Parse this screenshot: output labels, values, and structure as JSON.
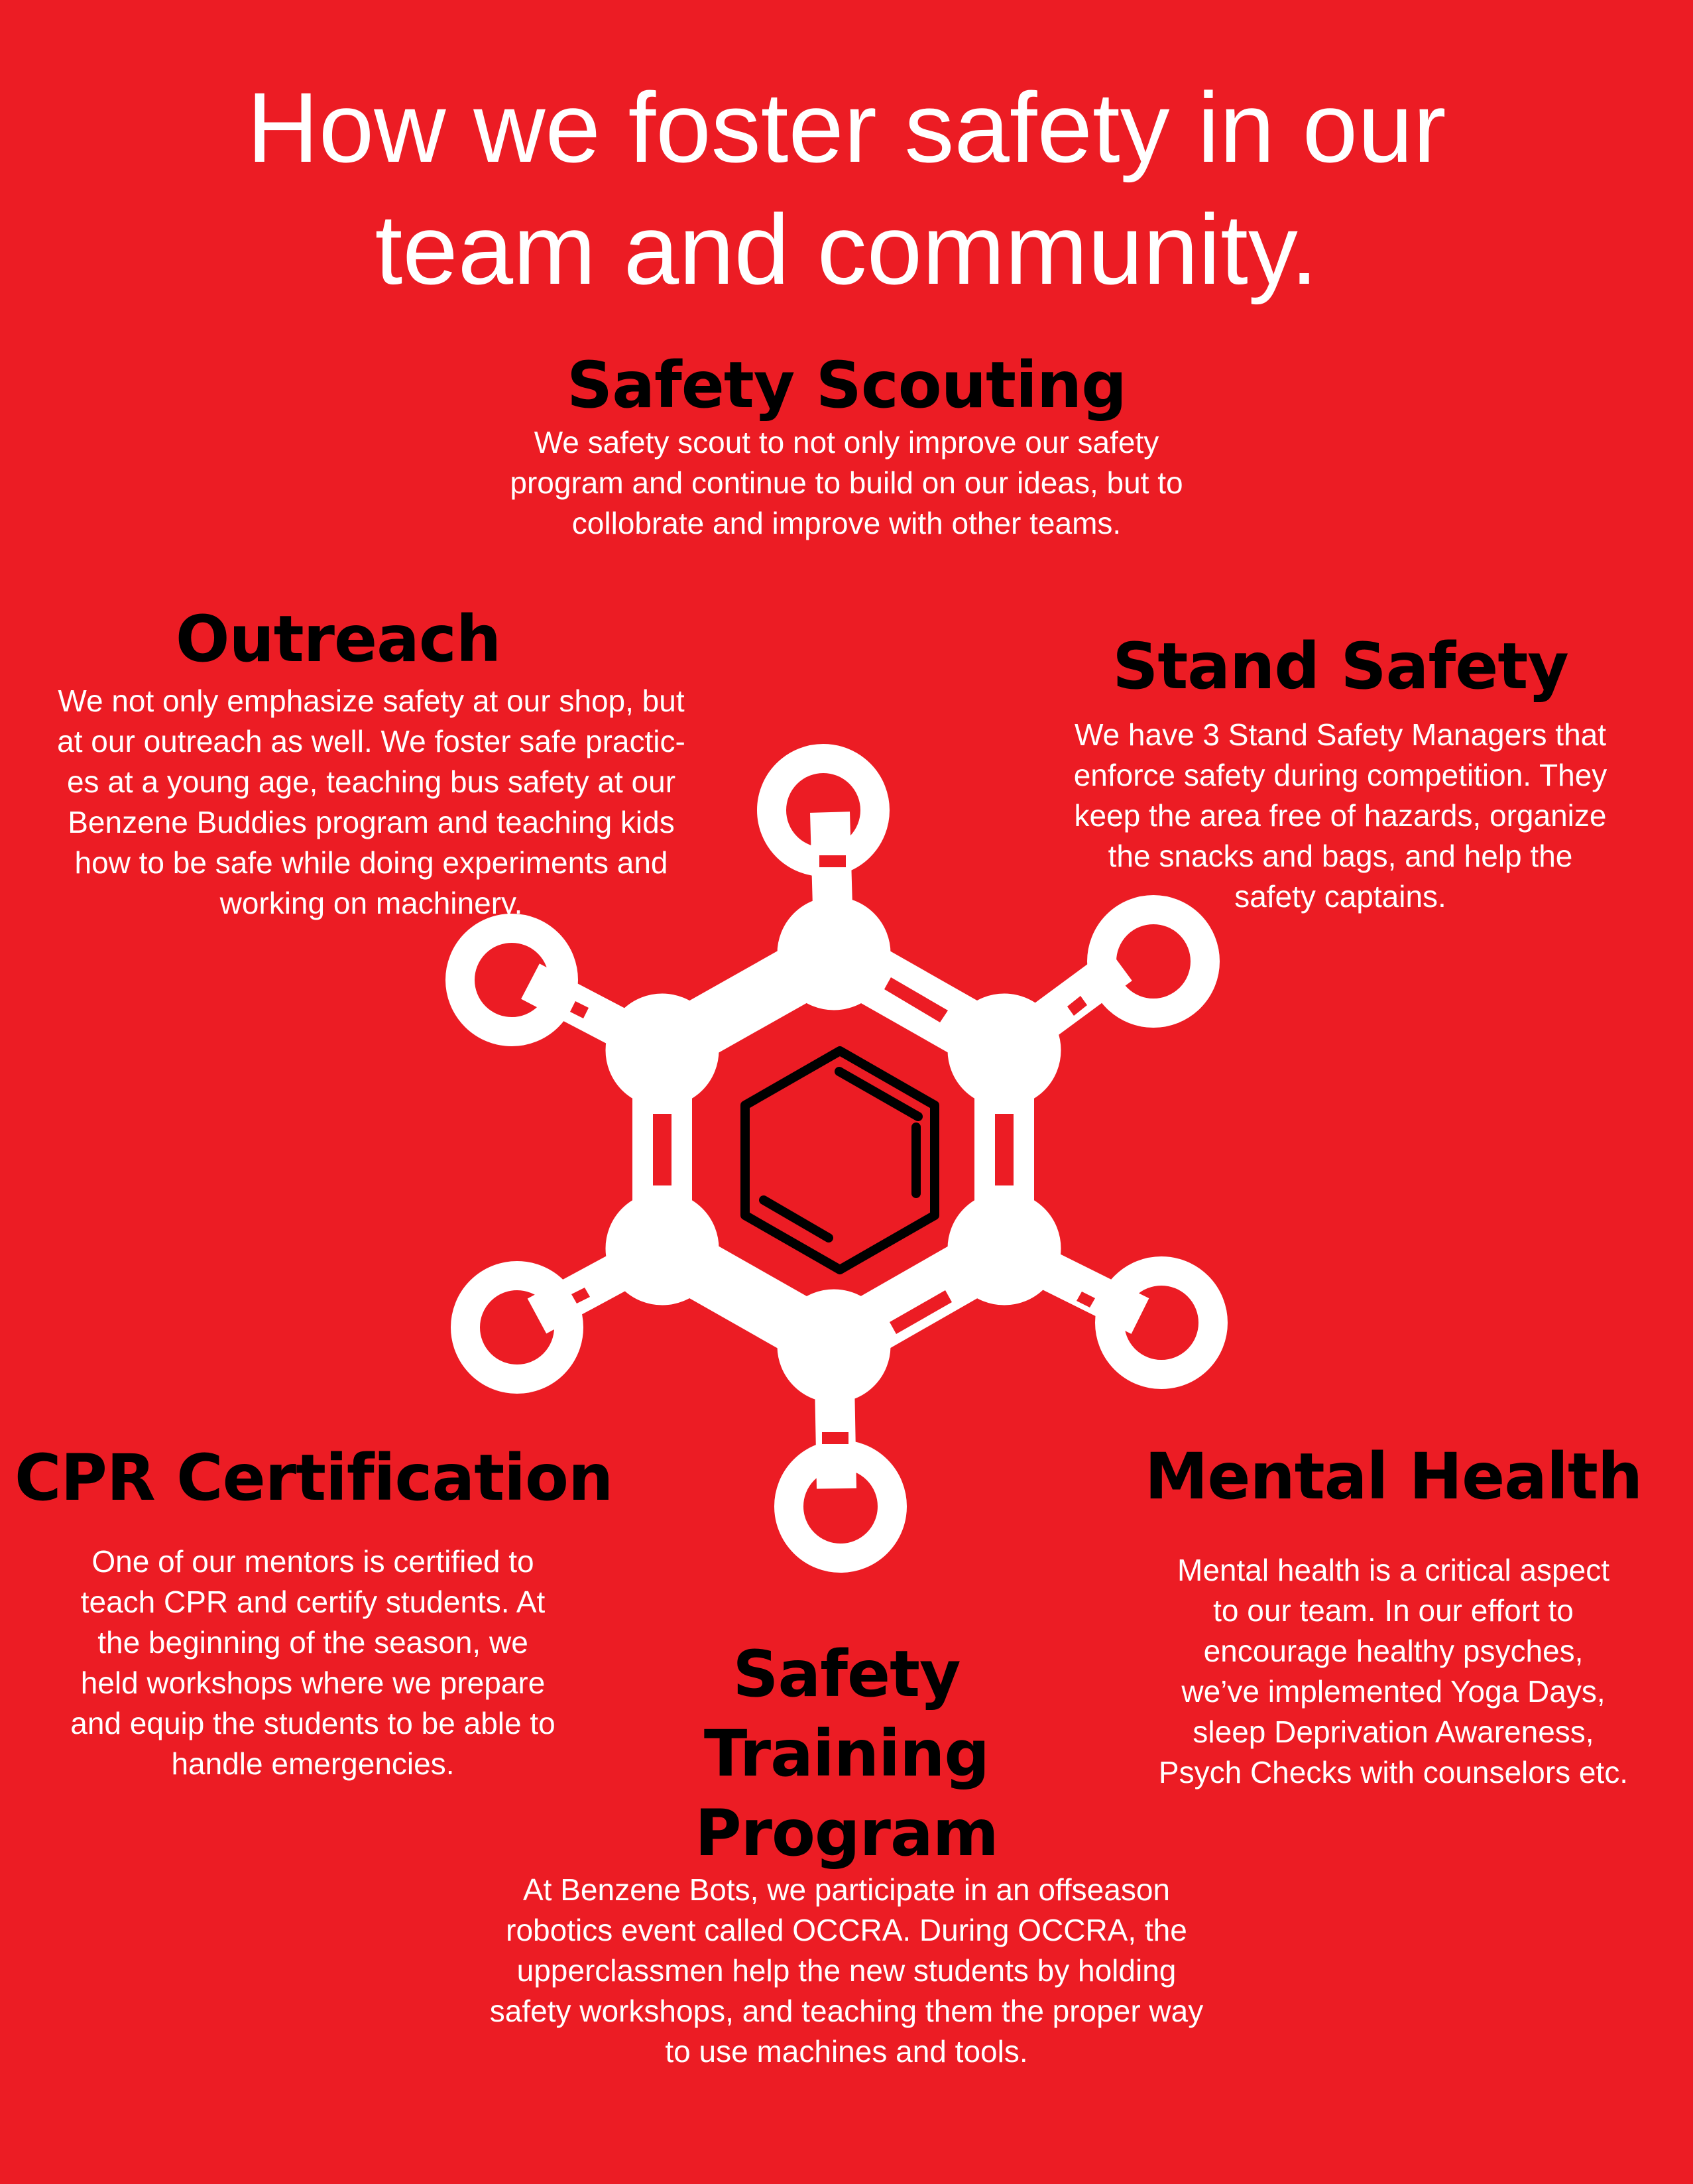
{
  "title": {
    "line1": "How we foster safety in our",
    "line2": "team and community."
  },
  "sections": {
    "safety_scouting": {
      "heading": "Safety Scouting",
      "lines": [
        "We safety scout to not only improve our safety",
        "program and continue to build on our ideas, but to",
        "collobrate and improve with other teams."
      ]
    },
    "outreach": {
      "heading": "Outreach",
      "lines": [
        "We not only emphasize safety at our shop, but",
        "at our outreach as well. We foster safe practic-",
        "es at a young age, teaching bus safety at our",
        "Benzene Buddies program and teaching kids",
        "how to be safe while doing experiments and",
        "working on machinery."
      ]
    },
    "stand_safety": {
      "heading": "Stand Safety",
      "lines": [
        "We have 3 Stand Safety Managers that",
        "enforce safety during competition. They",
        "keep the area free of hazards, organize",
        "the snacks and bags, and help the",
        "safety captains."
      ]
    },
    "cpr_certification": {
      "heading": "CPR Certification",
      "lines": [
        "One of our mentors is certified to",
        "teach CPR and certify students. At",
        "the beginning of the season, we",
        "held workshops where we prepare",
        "and equip the students to be able to",
        "handle emergencies."
      ]
    },
    "mental_health": {
      "heading": "Mental Health",
      "lines": [
        "Mental health is a critical aspect",
        "to our team. In our effort to",
        "encourage healthy psyches,",
        "we’ve implemented Yoga Days,",
        "sleep Deprivation Awareness,",
        "Psych Checks with counselors etc."
      ]
    },
    "safety_training": {
      "heading_lines": [
        "Safety",
        "Training",
        "Program"
      ],
      "lines": [
        "At Benzene Bots, we participate in an offseason",
        "robotics event called OCCRA. During OCCRA, the",
        "upperclassmen help the new students by holding",
        "safety workshops, and teaching them the proper way",
        "to use machines and tools."
      ]
    }
  },
  "colors": {
    "background": "#ec1c24",
    "heading": "#000000",
    "body_text": "#ffffff",
    "molecule": "#ffffff"
  },
  "icons": {
    "center_graphic": "benzene-molecule-icon"
  }
}
